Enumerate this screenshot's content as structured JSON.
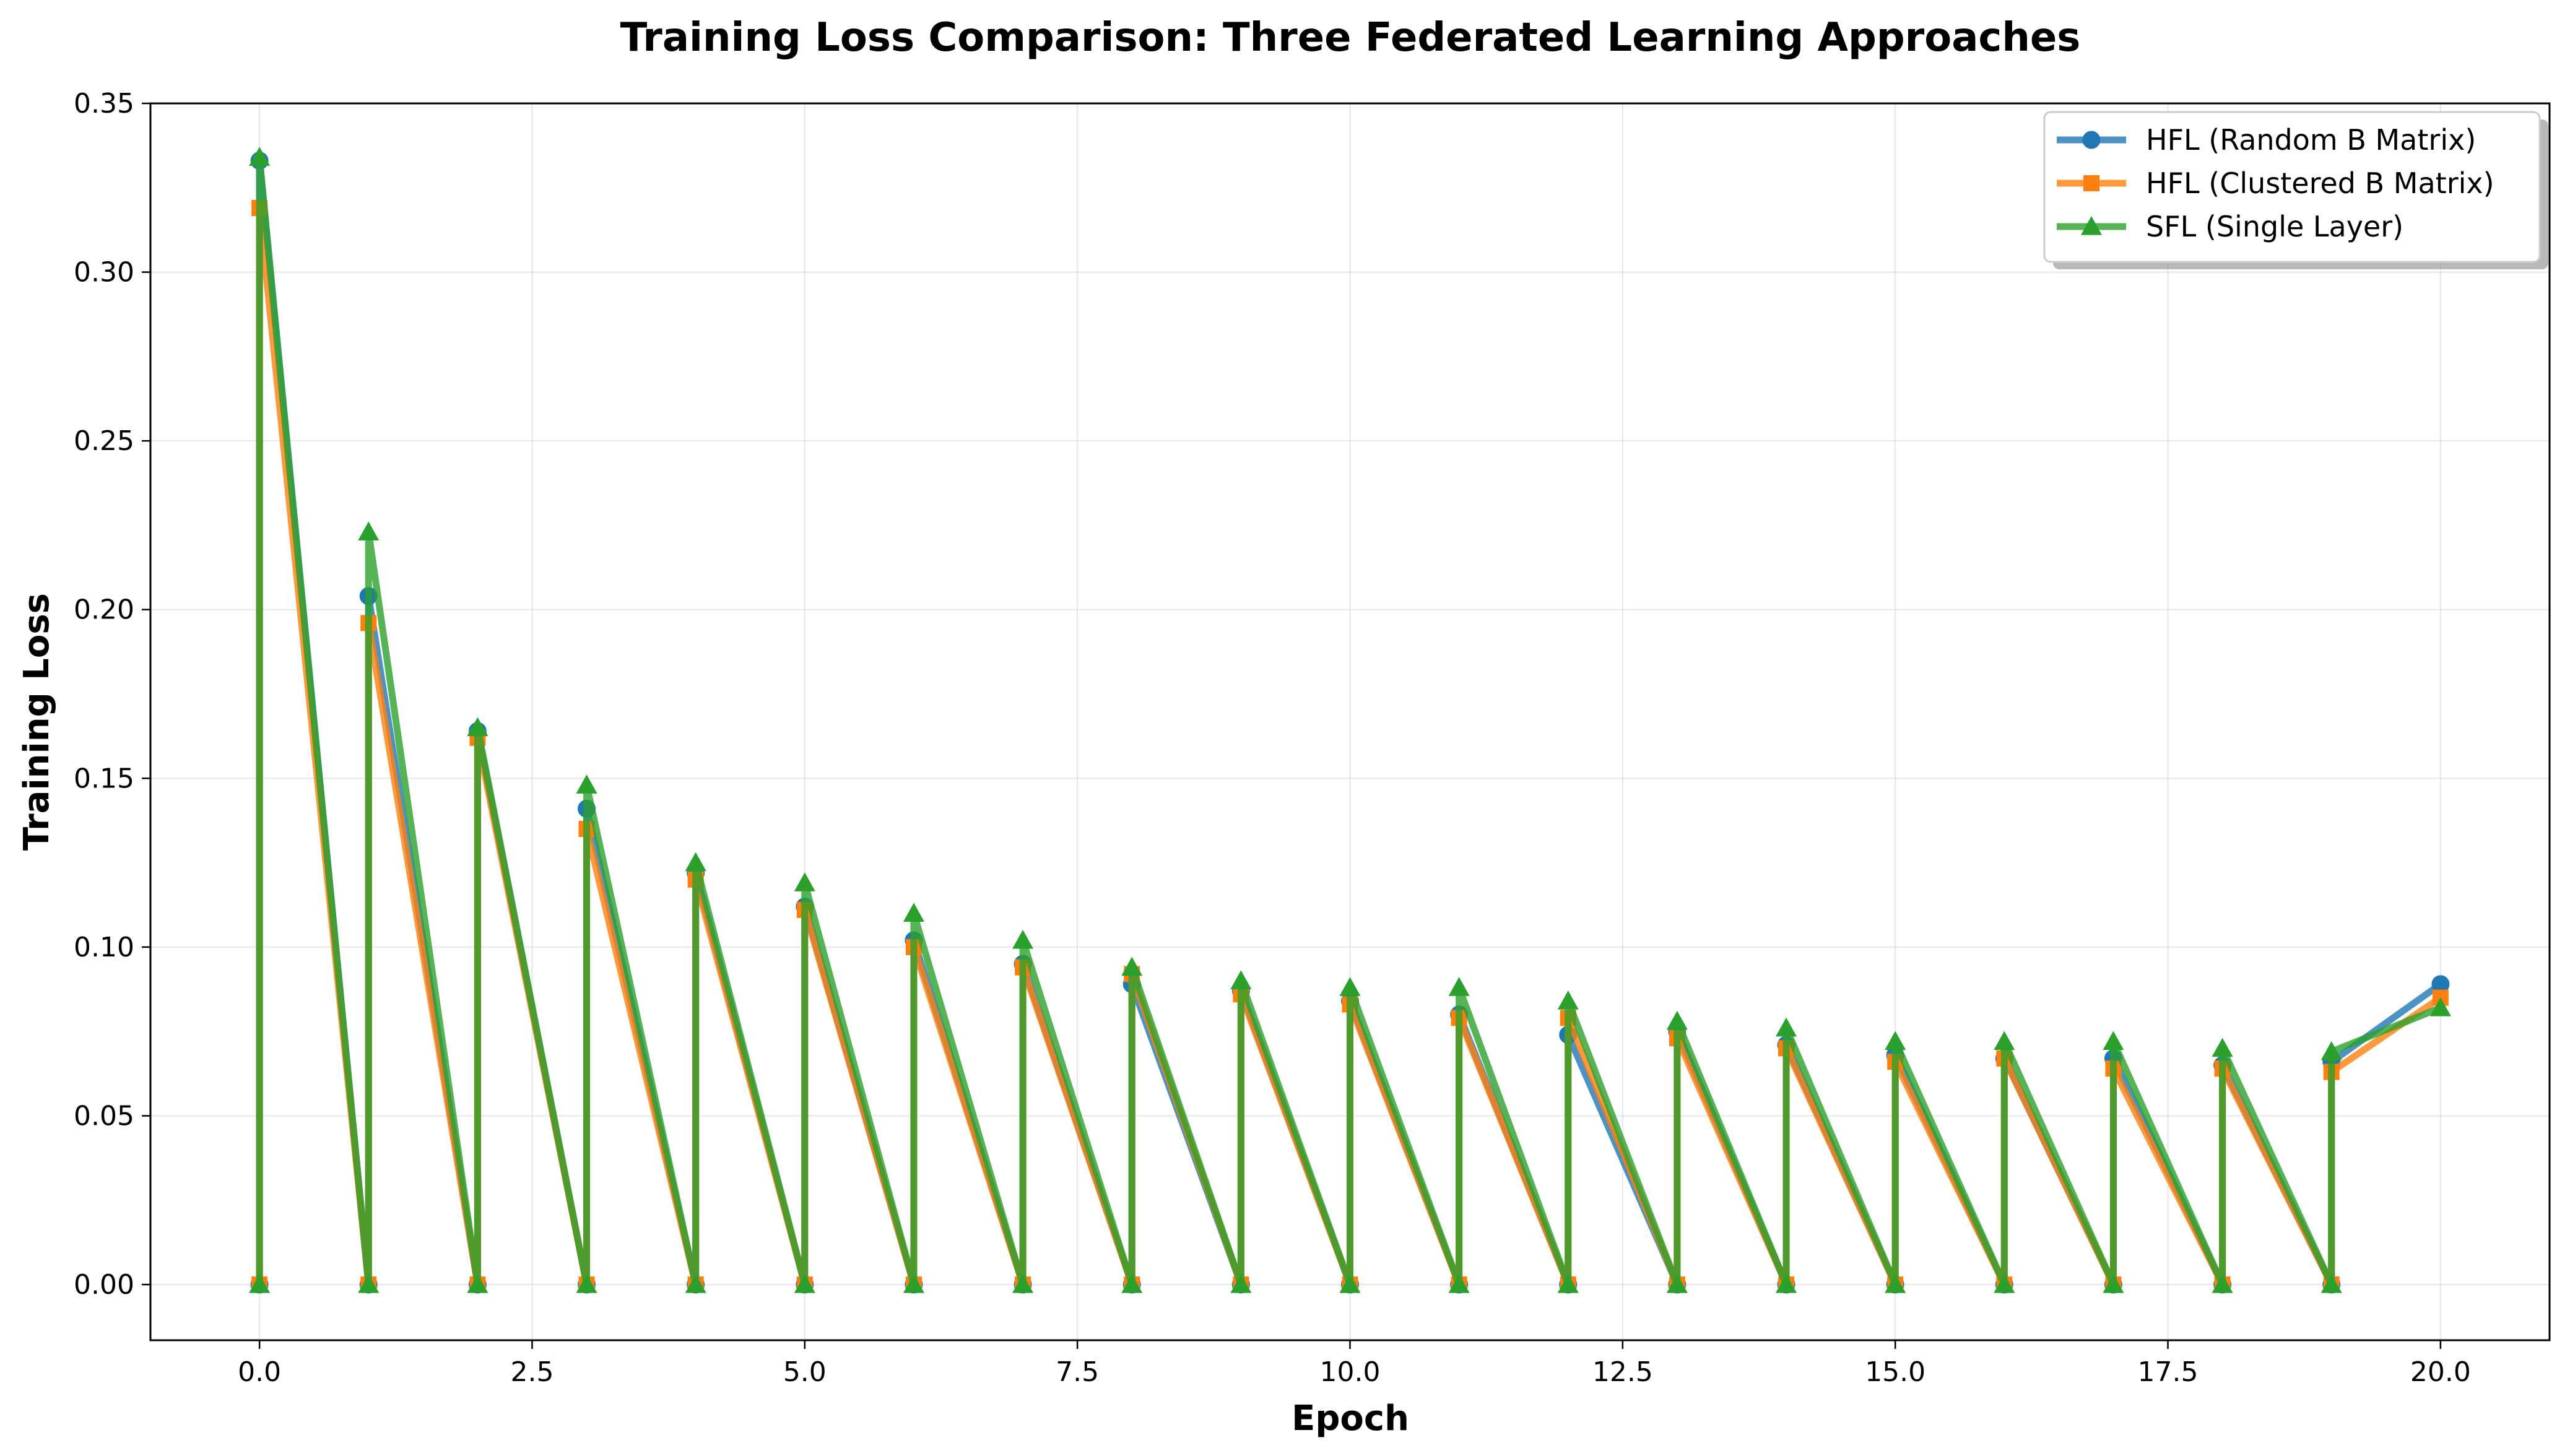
{
  "chart_data": {
    "type": "line",
    "title": "Training Loss Comparison: Three Federated Learning Approaches",
    "xlabel": "Epoch",
    "ylabel": "Training Loss",
    "xlim": [
      -1,
      21
    ],
    "ylim": [
      -0.0165,
      0.35
    ],
    "xticks": [
      0.0,
      2.5,
      5.0,
      7.5,
      10.0,
      12.5,
      15.0,
      17.5,
      20.0
    ],
    "xtick_labels": [
      "0.0",
      "2.5",
      "5.0",
      "7.5",
      "10.0",
      "12.5",
      "15.0",
      "17.5",
      "20.0"
    ],
    "yticks": [
      0.0,
      0.05,
      0.1,
      0.15,
      0.2,
      0.25,
      0.3,
      0.35
    ],
    "ytick_labels": [
      "0.00",
      "0.05",
      "0.10",
      "0.15",
      "0.20",
      "0.25",
      "0.30",
      "0.35"
    ],
    "grid": true,
    "legend_position": "top-right",
    "series": [
      {
        "name": "HFL (Random B Matrix)",
        "color": "#1f77b4",
        "marker": "circle",
        "x": [
          0,
          0,
          1,
          1,
          2,
          2,
          3,
          3,
          4,
          4,
          5,
          5,
          6,
          6,
          7,
          7,
          8,
          8,
          9,
          9,
          10,
          10,
          11,
          11,
          12,
          12,
          13,
          13,
          14,
          14,
          15,
          15,
          16,
          16,
          17,
          17,
          18,
          18,
          19,
          19,
          20
        ],
        "y": [
          0,
          0.333,
          0,
          0.204,
          0,
          0.164,
          0,
          0.141,
          0,
          0.122,
          0,
          0.112,
          0,
          0.102,
          0,
          0.095,
          0,
          0.089,
          0,
          0.087,
          0,
          0.084,
          0,
          0.08,
          0,
          0.074,
          0,
          0.075,
          0,
          0.071,
          0,
          0.068,
          0,
          0.067,
          0,
          0.067,
          0,
          0.065,
          0,
          0.066,
          0.089
        ]
      },
      {
        "name": "HFL (Clustered B Matrix)",
        "color": "#ff7f0e",
        "marker": "square",
        "x": [
          0,
          0,
          1,
          1,
          2,
          2,
          3,
          3,
          4,
          4,
          5,
          5,
          6,
          6,
          7,
          7,
          8,
          8,
          9,
          9,
          10,
          10,
          11,
          11,
          12,
          12,
          13,
          13,
          14,
          14,
          15,
          15,
          16,
          16,
          17,
          17,
          18,
          18,
          19,
          19,
          20
        ],
        "y": [
          0,
          0.319,
          0,
          0.196,
          0,
          0.162,
          0,
          0.135,
          0,
          0.12,
          0,
          0.111,
          0,
          0.1,
          0,
          0.094,
          0,
          0.092,
          0,
          0.086,
          0,
          0.083,
          0,
          0.079,
          0,
          0.079,
          0,
          0.073,
          0,
          0.07,
          0,
          0.066,
          0,
          0.067,
          0,
          0.064,
          0,
          0.064,
          0,
          0.063,
          0.085
        ]
      },
      {
        "name": "SFL (Single Layer)",
        "color": "#2ca02c",
        "marker": "triangle",
        "x": [
          0,
          0,
          1,
          1,
          2,
          2,
          3,
          3,
          4,
          4,
          5,
          5,
          6,
          6,
          7,
          7,
          8,
          8,
          9,
          9,
          10,
          10,
          11,
          11,
          12,
          12,
          13,
          13,
          14,
          14,
          15,
          15,
          16,
          16,
          17,
          17,
          18,
          18,
          19,
          19,
          20
        ],
        "y": [
          0,
          0.334,
          0,
          0.223,
          0,
          0.165,
          0,
          0.148,
          0,
          0.125,
          0,
          0.119,
          0,
          0.11,
          0,
          0.102,
          0,
          0.094,
          0,
          0.09,
          0,
          0.088,
          0,
          0.088,
          0,
          0.084,
          0,
          0.078,
          0,
          0.076,
          0,
          0.072,
          0,
          0.072,
          0,
          0.072,
          0,
          0.07,
          0,
          0.069,
          0.082
        ]
      }
    ]
  }
}
